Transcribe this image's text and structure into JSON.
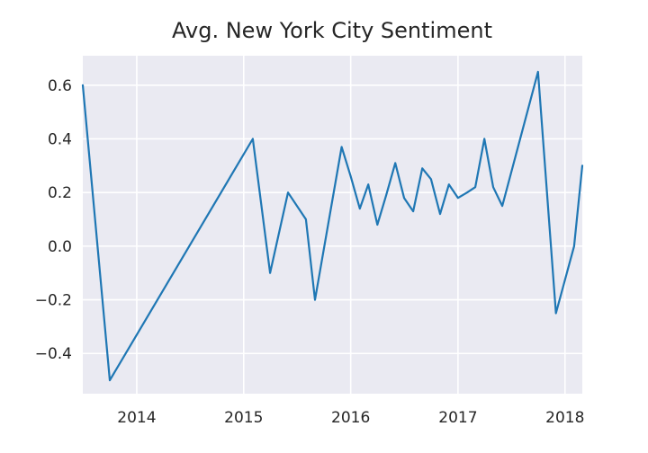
{
  "chart_data": {
    "type": "line",
    "title": "Avg. New York City Sentiment",
    "xlabel": "",
    "ylabel": "",
    "x_tick_labels": [
      "2014",
      "2015",
      "2016",
      "2017",
      "2018"
    ],
    "y_tick_labels": [
      "−0.4",
      "−0.2",
      "0.0",
      "0.2",
      "0.4",
      "0.6"
    ],
    "y_ticks": [
      -0.4,
      -0.2,
      0.0,
      0.2,
      0.4,
      0.6
    ],
    "xlim": [
      "2013-07-01",
      "2018-03-01"
    ],
    "ylim": [
      -0.55,
      0.71
    ],
    "grid": true,
    "series": [
      {
        "color": "#1f77b4",
        "points": [
          {
            "x": "2013-07-01",
            "y": 0.6
          },
          {
            "x": "2013-10-01",
            "y": -0.5
          },
          {
            "x": "2015-02-01",
            "y": 0.4
          },
          {
            "x": "2015-04-01",
            "y": -0.1
          },
          {
            "x": "2015-06-01",
            "y": 0.2
          },
          {
            "x": "2015-08-01",
            "y": 0.1
          },
          {
            "x": "2015-09-01",
            "y": -0.2
          },
          {
            "x": "2015-12-01",
            "y": 0.37
          },
          {
            "x": "2016-01-01",
            "y": 0.26
          },
          {
            "x": "2016-02-01",
            "y": 0.14
          },
          {
            "x": "2016-03-01",
            "y": 0.23
          },
          {
            "x": "2016-04-01",
            "y": 0.08
          },
          {
            "x": "2016-05-01",
            "y": 0.19
          },
          {
            "x": "2016-06-01",
            "y": 0.31
          },
          {
            "x": "2016-07-01",
            "y": 0.18
          },
          {
            "x": "2016-08-01",
            "y": 0.13
          },
          {
            "x": "2016-09-01",
            "y": 0.29
          },
          {
            "x": "2016-10-01",
            "y": 0.25
          },
          {
            "x": "2016-11-01",
            "y": 0.12
          },
          {
            "x": "2016-12-01",
            "y": 0.23
          },
          {
            "x": "2017-01-01",
            "y": 0.18
          },
          {
            "x": "2017-02-01",
            "y": 0.2
          },
          {
            "x": "2017-03-01",
            "y": 0.22
          },
          {
            "x": "2017-04-01",
            "y": 0.4
          },
          {
            "x": "2017-05-01",
            "y": 0.22
          },
          {
            "x": "2017-06-01",
            "y": 0.15
          },
          {
            "x": "2017-10-01",
            "y": 0.65
          },
          {
            "x": "2017-12-01",
            "y": -0.25
          },
          {
            "x": "2018-02-01",
            "y": 0.0
          },
          {
            "x": "2018-03-01",
            "y": 0.3
          }
        ]
      }
    ]
  }
}
